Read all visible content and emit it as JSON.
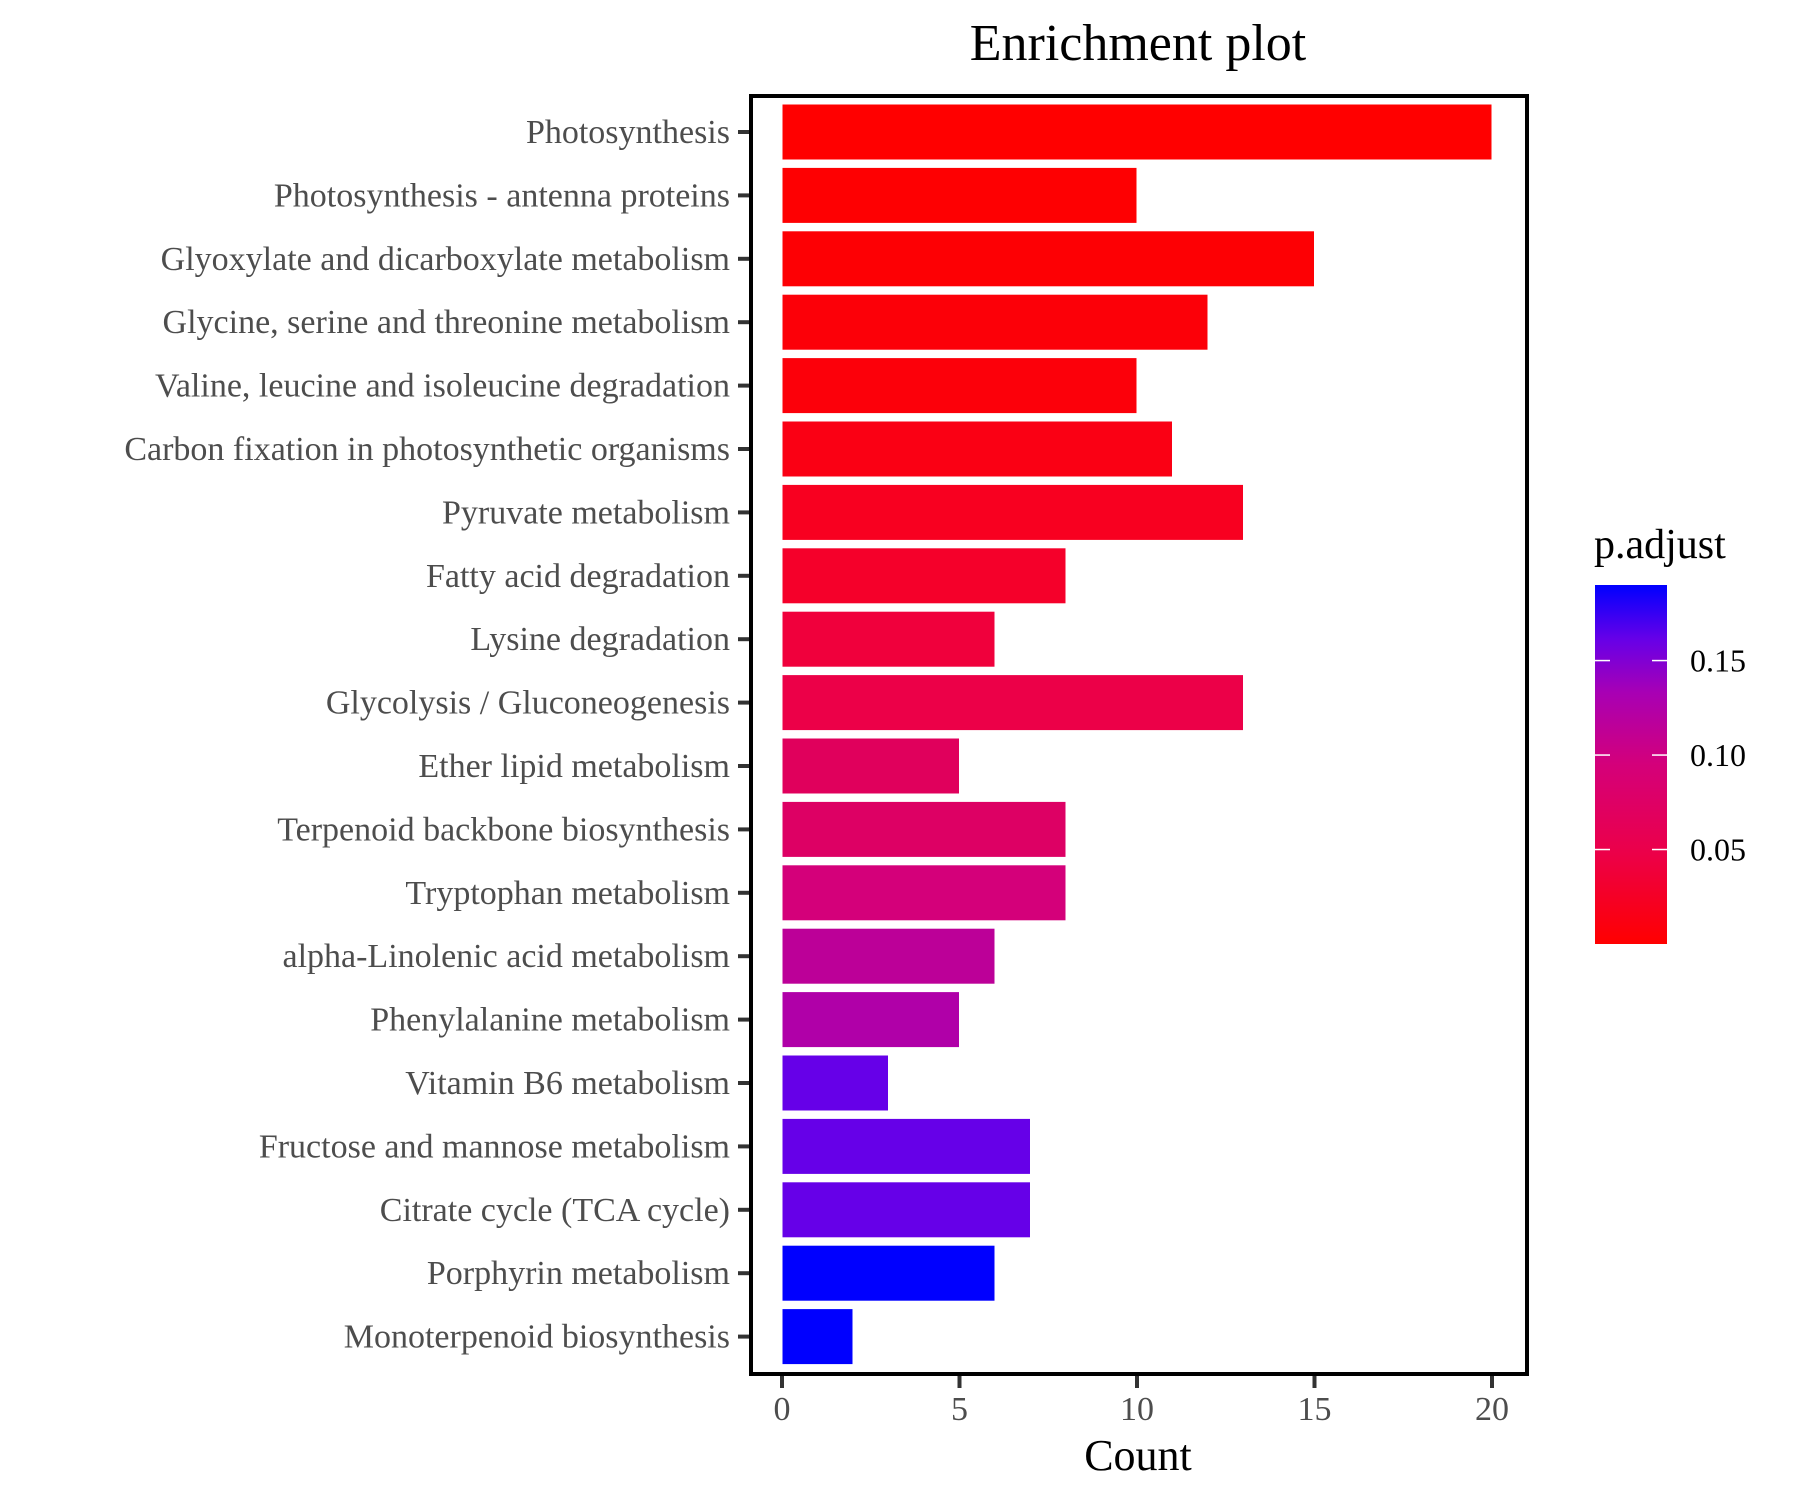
{
  "chart_data": {
    "type": "bar",
    "orientation": "horizontal",
    "title": "Enrichment plot",
    "xlabel": "Count",
    "ylabel": "",
    "xlim": [
      0,
      21
    ],
    "x_ticks": [
      "0",
      "5",
      "10",
      "15",
      "20"
    ],
    "x_tick_values": [
      0,
      5,
      10,
      15,
      20
    ],
    "grid": false,
    "categories": [
      "Photosynthesis",
      "Photosynthesis - antenna proteins",
      "Glyoxylate and dicarboxylate metabolism",
      "Glycine, serine and threonine metabolism",
      "Valine, leucine and isoleucine degradation",
      "Carbon fixation in photosynthetic organisms",
      "Pyruvate metabolism",
      "Fatty acid degradation",
      "Lysine degradation",
      "Glycolysis / Gluconeogenesis",
      "Ether lipid metabolism",
      "Terpenoid backbone biosynthesis",
      "Tryptophan metabolism",
      "alpha-Linolenic acid metabolism",
      "Phenylalanine metabolism",
      "Vitamin B6 metabolism",
      "Fructose and mannose metabolism",
      "Citrate cycle (TCA cycle)",
      "Porphyrin metabolism",
      "Monoterpenoid biosynthesis"
    ],
    "values": [
      20,
      10,
      15,
      12,
      10,
      11,
      13,
      8,
      6,
      13,
      5,
      8,
      8,
      6,
      5,
      3,
      7,
      7,
      6,
      2
    ],
    "p_adjust": [
      0.001,
      0.002,
      0.003,
      0.005,
      0.006,
      0.008,
      0.012,
      0.016,
      0.024,
      0.029,
      0.038,
      0.042,
      0.052,
      0.078,
      0.09,
      0.15,
      0.15,
      0.15,
      0.19,
      0.19
    ],
    "bar_colors": [
      "#FF0000",
      "#FE0002",
      "#FD0004",
      "#FC0008",
      "#FC000A",
      "#FA0014",
      "#F80020",
      "#F5002A",
      "#F0003C",
      "#EC0048",
      "#E0005C",
      "#DD0064",
      "#D4007A",
      "#BC0098",
      "#B000A8",
      "#6600E8",
      "#6600E8",
      "#6600E8",
      "#0000FF",
      "#0000FF"
    ],
    "legend": {
      "title": "p.adjust",
      "position": "right",
      "type": "colorbar",
      "range": [
        0.0,
        0.19
      ],
      "ticks": [
        "0.05",
        "0.10",
        "0.15"
      ],
      "tick_values": [
        0.05,
        0.1,
        0.15
      ],
      "low_color": "#FF0000",
      "high_color": "#0000FF"
    }
  }
}
